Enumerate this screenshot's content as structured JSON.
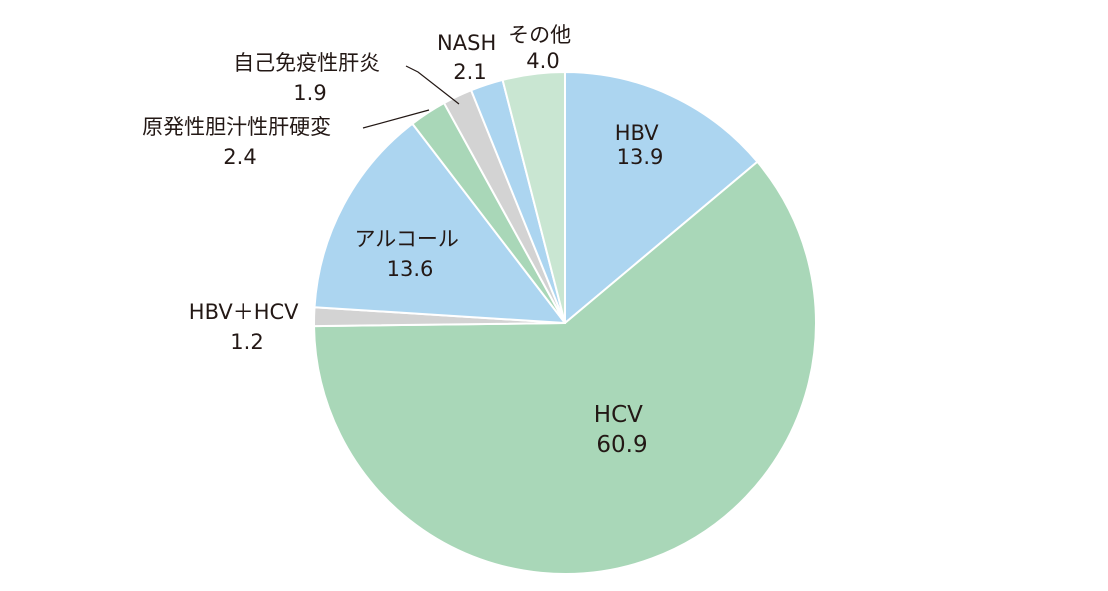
{
  "chart_data": {
    "type": "pie",
    "start": "12 o'clock",
    "direction": "clockwise",
    "slices": [
      {
        "label": "HBV",
        "value": 13.9,
        "value_text": "13.9",
        "color": "#acd5f0"
      },
      {
        "label": "HCV",
        "value": 60.9,
        "value_text": "60.9",
        "color": "#a9d7b8"
      },
      {
        "label": "HBV＋HCV",
        "value": 1.2,
        "value_text": "1.2",
        "color": "#d3d3d3"
      },
      {
        "label": "アルコール",
        "value": 13.6,
        "value_text": "13.6",
        "color": "#acd5f0"
      },
      {
        "label": "原発性胆汁性肝硬変",
        "value": 2.4,
        "value_text": "2.4",
        "color": "#a9d7b8"
      },
      {
        "label": "自己免疫性肝炎",
        "value": 1.9,
        "value_text": "1.9",
        "color": "#d3d3d3"
      },
      {
        "label": "NASH",
        "value": 2.1,
        "value_text": "2.1",
        "color": "#acd5f0"
      },
      {
        "label": "その他",
        "value": 4.0,
        "value_text": "4.0",
        "color": "#c9e6d2"
      }
    ]
  }
}
